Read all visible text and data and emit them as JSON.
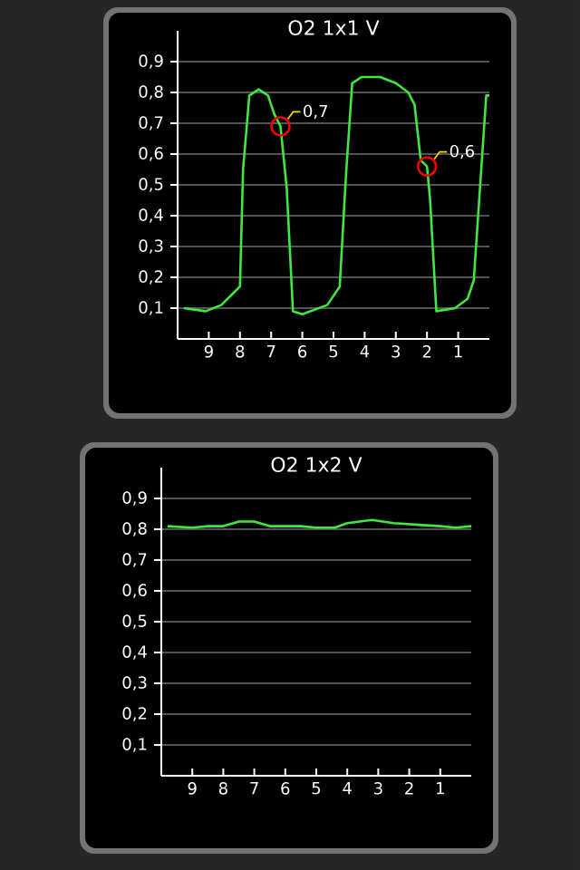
{
  "chart_data": [
    {
      "type": "line",
      "title": "O2 1x1 V",
      "color": "#3ee83e",
      "grid": "y",
      "x": [
        9.8,
        9.1,
        8.6,
        8.2,
        8.0,
        7.9,
        7.7,
        7.4,
        7.1,
        6.9,
        6.7,
        6.5,
        6.3,
        6.0,
        5.2,
        4.8,
        4.6,
        4.4,
        4.1,
        3.5,
        3.0,
        2.6,
        2.4,
        2.2,
        2.0,
        1.9,
        1.7,
        1.1,
        0.7,
        0.5,
        0.3,
        0.1,
        0.0
      ],
      "values": [
        0.1,
        0.09,
        0.11,
        0.15,
        0.17,
        0.55,
        0.79,
        0.81,
        0.79,
        0.73,
        0.69,
        0.49,
        0.09,
        0.08,
        0.11,
        0.17,
        0.53,
        0.83,
        0.85,
        0.85,
        0.83,
        0.8,
        0.76,
        0.58,
        0.56,
        0.45,
        0.09,
        0.1,
        0.13,
        0.19,
        0.49,
        0.79,
        0.79
      ],
      "xlim": [
        10,
        0
      ],
      "xticks": [
        9,
        8,
        7,
        6,
        5,
        4,
        3,
        2,
        1
      ],
      "ylim": [
        0,
        1
      ],
      "yticks": [
        {
          "value": 0.1,
          "label": "0,1"
        },
        {
          "value": 0.2,
          "label": "0,2"
        },
        {
          "value": 0.3,
          "label": "0,3"
        },
        {
          "value": 0.4,
          "label": "0,4"
        },
        {
          "value": 0.5,
          "label": "0,5"
        },
        {
          "value": 0.6,
          "label": "0,6"
        },
        {
          "value": 0.7,
          "label": "0,7"
        },
        {
          "value": 0.8,
          "label": "0,8"
        },
        {
          "value": 0.9,
          "label": "0,9"
        }
      ],
      "annotations": [
        {
          "text": "0,7",
          "x": 6.7,
          "y": 0.69
        },
        {
          "text": "0,6",
          "x": 2.0,
          "y": 0.56
        }
      ]
    },
    {
      "type": "line",
      "title": "O2 1x2 V",
      "color": "#3ee83e",
      "grid": "y",
      "x": [
        9.8,
        9.0,
        8.5,
        8.0,
        7.5,
        7.0,
        6.5,
        5.5,
        5.0,
        4.4,
        4.0,
        3.2,
        2.5,
        1.8,
        1.0,
        0.5,
        0.0
      ],
      "values": [
        0.81,
        0.805,
        0.81,
        0.81,
        0.825,
        0.825,
        0.81,
        0.81,
        0.805,
        0.805,
        0.82,
        0.83,
        0.82,
        0.815,
        0.81,
        0.805,
        0.81
      ],
      "xlim": [
        10,
        0
      ],
      "xticks": [
        9,
        8,
        7,
        6,
        5,
        4,
        3,
        2,
        1
      ],
      "ylim": [
        0,
        1
      ],
      "yticks": [
        {
          "value": 0.1,
          "label": "0,1"
        },
        {
          "value": 0.2,
          "label": "0,2"
        },
        {
          "value": 0.3,
          "label": "0,3"
        },
        {
          "value": 0.4,
          "label": "0,4"
        },
        {
          "value": 0.5,
          "label": "0,5"
        },
        {
          "value": 0.6,
          "label": "0,6"
        },
        {
          "value": 0.7,
          "label": "0,7"
        },
        {
          "value": 0.8,
          "label": "0,8"
        },
        {
          "value": 0.9,
          "label": "0,9"
        }
      ]
    }
  ]
}
